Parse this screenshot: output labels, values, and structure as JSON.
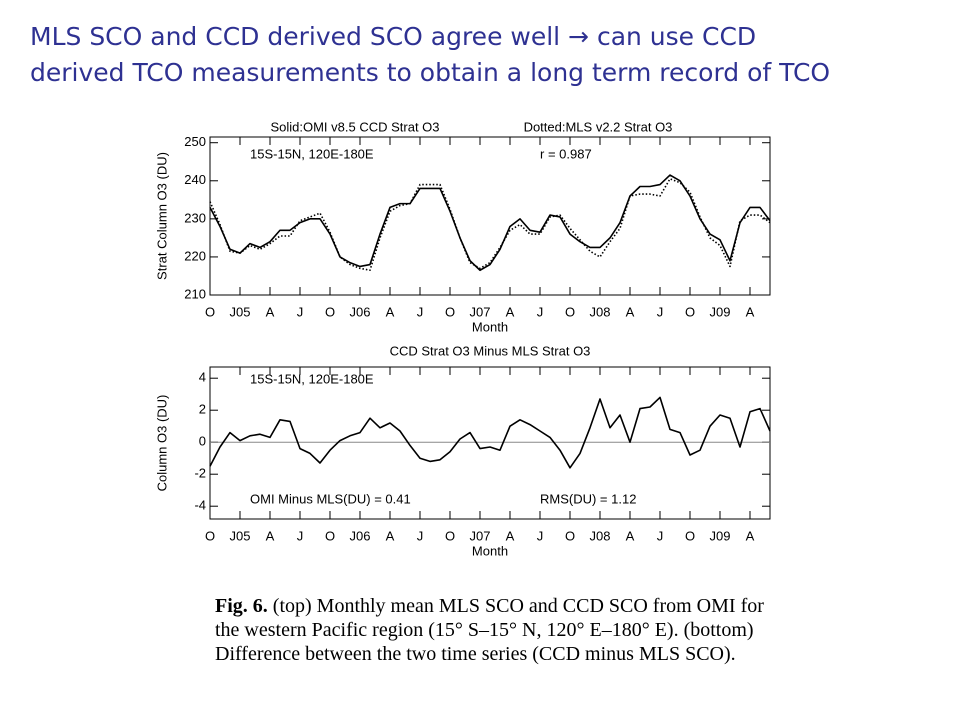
{
  "slide_title": [
    "MLS SCO and CCD derived SCO agree well → can use CCD",
    "derived TCO measurements to obtain a long term record of TCO"
  ],
  "caption": {
    "label": "Fig. 6.",
    "lines": [
      " (top) Monthly mean MLS SCO and CCD SCO from OMI for",
      "the western Pacific region (15° S–15° N, 120° E–180° E). (bottom)",
      "Difference between the two time series (CCD minus MLS SCO)."
    ]
  },
  "chart_data": [
    {
      "type": "line",
      "x_label": "Month",
      "y_label": "Strat Column O3 (DU)",
      "annotations": [
        "15S-15N, 120E-180E",
        "r =   0.987"
      ],
      "categories": [
        "O",
        null,
        null,
        "J05",
        null,
        null,
        "A",
        null,
        null,
        "J",
        null,
        null,
        "O",
        null,
        null,
        "J06",
        null,
        null,
        "A",
        null,
        null,
        "J",
        null,
        null,
        "O",
        null,
        null,
        "J07",
        null,
        null,
        "A",
        null,
        null,
        "J",
        null,
        null,
        "O",
        null,
        null,
        "J08",
        null,
        null,
        "A",
        null,
        null,
        "J",
        null,
        null,
        "O",
        null,
        null,
        "J09",
        null,
        null,
        "A",
        null,
        null
      ],
      "series": [
        {
          "name": "Solid:OMI v8.5 CCD Strat O3",
          "color": "#000000",
          "dash": "solid",
          "values": [
            233,
            228,
            222,
            221,
            223.5,
            222.5,
            224,
            227,
            227,
            229,
            230,
            230,
            226,
            220,
            218.5,
            217.5,
            218,
            226,
            233,
            234,
            234,
            238,
            238,
            238,
            232,
            225,
            219,
            216.5,
            218,
            222,
            228,
            230,
            227,
            226.5,
            231,
            230.5,
            226,
            224,
            222.5,
            222.5,
            225,
            229,
            236,
            238.5,
            238.5,
            239,
            241.5,
            240,
            236,
            230,
            226,
            224.5,
            219,
            229,
            233,
            233,
            229.5
          ]
        },
        {
          "name": "Dotted:MLS v2.2 Strat O3",
          "color": "#000000",
          "dash": "dotted",
          "values": [
            234.5,
            228.5,
            221.5,
            221,
            223,
            222,
            223.5,
            225.5,
            225.5,
            229.5,
            230.5,
            231.5,
            226.5,
            220,
            218,
            217,
            216.5,
            225,
            232,
            233.5,
            234,
            239,
            239,
            239,
            232.5,
            225,
            218.5,
            217,
            218.5,
            222.5,
            227,
            228.5,
            226,
            226,
            230.5,
            231,
            227.5,
            224.5,
            221.5,
            220,
            224,
            227.5,
            236,
            236.5,
            236.5,
            236,
            240.5,
            239.5,
            237,
            230.5,
            225,
            223,
            217.5,
            229.5,
            231,
            231,
            229
          ]
        }
      ],
      "ylim": [
        210,
        251.5
      ],
      "yticks": [
        210,
        220,
        230,
        240,
        250
      ]
    },
    {
      "type": "line",
      "title": "CCD Strat O3 Minus MLS Strat O3",
      "x_label": "Month",
      "y_label": "Column O3 (DU)",
      "annotations": [
        "15S-15N, 120E-180E",
        "OMI Minus MLS(DU) =   0.41",
        "RMS(DU) =   1.12"
      ],
      "categories": [
        "O",
        null,
        null,
        "J05",
        null,
        null,
        "A",
        null,
        null,
        "J",
        null,
        null,
        "O",
        null,
        null,
        "J06",
        null,
        null,
        "A",
        null,
        null,
        "J",
        null,
        null,
        "O",
        null,
        null,
        "J07",
        null,
        null,
        "A",
        null,
        null,
        "J",
        null,
        null,
        "O",
        null,
        null,
        "J08",
        null,
        null,
        "A",
        null,
        null,
        "J",
        null,
        null,
        "O",
        null,
        null,
        "J09",
        null,
        null,
        "A",
        null,
        null
      ],
      "series": [
        {
          "color": "#000000",
          "dash": "solid",
          "values": [
            -1.5,
            -0.3,
            0.6,
            0.1,
            0.4,
            0.5,
            0.3,
            1.4,
            1.3,
            -0.4,
            -0.7,
            -1.3,
            -0.5,
            0.1,
            0.4,
            0.6,
            1.5,
            0.9,
            1.2,
            0.7,
            -0.2,
            -1.0,
            -1.2,
            -1.1,
            -0.6,
            0.2,
            0.6,
            -0.4,
            -0.3,
            -0.5,
            1.0,
            1.4,
            1.1,
            0.7,
            0.3,
            -0.5,
            -1.6,
            -0.7,
            0.9,
            2.7,
            0.9,
            1.7,
            0.0,
            2.1,
            2.2,
            2.8,
            0.8,
            0.6,
            -0.8,
            -0.5,
            1.0,
            1.7,
            1.5,
            -0.3,
            1.9,
            2.1,
            0.7
          ]
        }
      ],
      "hline": 0,
      "ylim": [
        -4.8,
        4.7
      ],
      "yticks": [
        -4,
        -2,
        0,
        2,
        4
      ]
    }
  ]
}
